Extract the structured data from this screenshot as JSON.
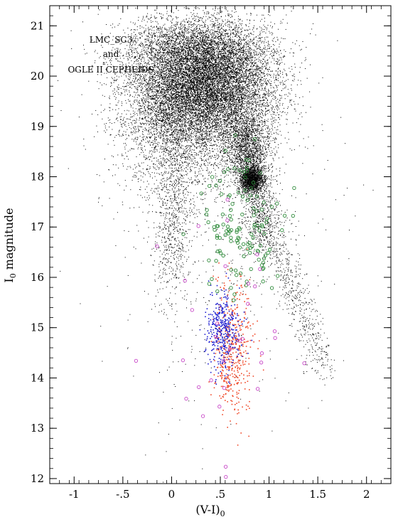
{
  "chart_data": {
    "type": "scatter",
    "title": "",
    "annotation_lines": [
      "LMC_SC3",
      "and",
      "OGLE II CEPHEIDS"
    ],
    "xlabel": {
      "main": "(V-I)",
      "sub": "0"
    },
    "ylabel": {
      "pre": "I",
      "sub": "0",
      "post": " magnitude"
    },
    "xlim": [
      -1.25,
      2.25
    ],
    "ylim": [
      21.4,
      11.9
    ],
    "y_inverted": true,
    "x_ticks": [
      -1,
      -0.5,
      0,
      0.5,
      1,
      1.5,
      2
    ],
    "x_tick_labels": [
      "-1",
      "-.5",
      "0",
      ".5",
      "1",
      "1.5",
      "2"
    ],
    "y_ticks": [
      12,
      13,
      14,
      15,
      16,
      17,
      18,
      19,
      20,
      21
    ],
    "y_tick_labels": [
      "12",
      "13",
      "14",
      "15",
      "16",
      "17",
      "18",
      "19",
      "20",
      "21"
    ],
    "grid": false,
    "legend": "none",
    "series": [
      {
        "kind": "field-stars",
        "marker": "dot",
        "color": "#000000",
        "groups": [
          {
            "center": [
              0.27,
              19.85
            ],
            "spread": [
              0.34,
              0.6
            ],
            "count": 9500
          },
          {
            "center": [
              0.1,
              19.0
            ],
            "spread": [
              0.35,
              0.75
            ],
            "count": 2500
          },
          {
            "center": [
              0.18,
              20.55
            ],
            "spread": [
              0.4,
              0.3
            ],
            "count": 1600
          },
          {
            "center": [
              0.55,
              20.2
            ],
            "spread": [
              0.28,
              0.45
            ],
            "count": 1000
          },
          {
            "center": [
              0.82,
              17.95
            ],
            "spread": [
              0.06,
              0.13
            ],
            "count": 1700
          },
          {
            "center": [
              0.8,
              18.4
            ],
            "spread": [
              0.12,
              0.35
            ],
            "count": 900
          },
          {
            "center": [
              0.75,
              18.7
            ],
            "spread": [
              0.1,
              0.35
            ],
            "count": 700
          },
          {
            "center": [
              0.75,
              19.5
            ],
            "spread": [
              0.25,
              0.5
            ],
            "count": 900
          },
          {
            "center": [
              0.9,
              17.2
            ],
            "spread": [
              0.1,
              0.4
            ],
            "count": 500
          },
          {
            "center": [
              0.05,
              17.4
            ],
            "spread": [
              0.09,
              0.8
            ],
            "count": 550
          },
          {
            "center": [
              -0.05,
              16.5
            ],
            "spread": [
              0.08,
              0.6
            ],
            "count": 200
          },
          {
            "center": [
              0.55,
              17.0
            ],
            "spread": [
              0.55,
              2.0
            ],
            "count": 500
          }
        ],
        "branch": {
          "from": [
            0.9,
            17.6
          ],
          "to": [
            1.55,
            14.2
          ],
          "count": 700,
          "spread": [
            0.08,
            0.2
          ]
        }
      },
      {
        "kind": "cepheid-bright",
        "marker": "dot",
        "color": "#f04a2a",
        "center": [
          0.62,
          14.6
        ],
        "spread": [
          0.1,
          0.65
        ],
        "count": 450
      },
      {
        "kind": "cepheid-blue",
        "marker": "dot",
        "color": "#1f1fd0",
        "center": [
          0.52,
          14.95
        ],
        "spread": [
          0.085,
          0.42
        ],
        "count": 380
      },
      {
        "kind": "green-circles",
        "marker": "circle",
        "color": "#2e8b3a",
        "center": [
          0.72,
          17.0
        ],
        "spread": [
          0.2,
          0.7
        ],
        "count": 130
      },
      {
        "kind": "magenta-circles",
        "marker": "circle",
        "color": "#c848c8",
        "center": [
          0.7,
          15.0
        ],
        "spread": [
          0.35,
          1.3
        ],
        "count": 35
      }
    ]
  }
}
